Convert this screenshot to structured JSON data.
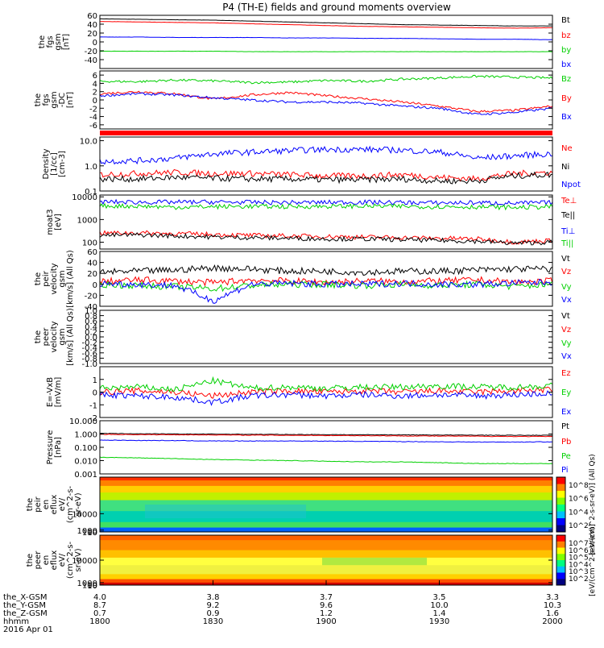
{
  "title": "P4 (TH-E) fields and ground moments overview",
  "colors": {
    "black": "#000000",
    "red": "#ff0000",
    "green": "#00d000",
    "blue": "#0000ff"
  },
  "chart_data": [
    {
      "type": "line",
      "id": "fgs",
      "ylabel_lines": [
        "the",
        "fgs",
        "gsm",
        "[nT]"
      ],
      "ylim": [
        -60,
        60
      ],
      "ticks": [
        60,
        40,
        20,
        0,
        -20,
        -40
      ],
      "series": [
        {
          "name": "Bt",
          "color": "black",
          "values": [
            52,
            51,
            50,
            49,
            47,
            45,
            43,
            41,
            39,
            38,
            37,
            36,
            36
          ]
        },
        {
          "name": "bz",
          "color": "red",
          "values": [
            46,
            45,
            44,
            43,
            41,
            39,
            37,
            35,
            34,
            33,
            32,
            31,
            32
          ]
        },
        {
          "name": "by",
          "color": "green",
          "values": [
            -21,
            -21,
            -21,
            -21,
            -22,
            -22,
            -22,
            -22,
            -22,
            -22,
            -22,
            -22,
            -22
          ]
        },
        {
          "name": "bx",
          "color": "blue",
          "values": [
            11,
            11,
            10,
            10,
            10,
            9,
            9,
            8,
            8,
            7,
            6,
            6,
            5
          ]
        }
      ]
    },
    {
      "type": "line",
      "id": "fgs_dsl",
      "ylabel_lines": [
        "the",
        "fgs",
        "gsm",
        "-DC",
        "[nT]"
      ],
      "ylim": [
        -7,
        7
      ],
      "ticks": [
        6,
        4,
        2,
        0,
        -2,
        -4,
        -6
      ],
      "series": [
        {
          "name": "Bz",
          "color": "green",
          "values": [
            4.5,
            4.4,
            4.8,
            4.6,
            4.2,
            4.3,
            4.7,
            4.5,
            5,
            5.3,
            5.7,
            5.5,
            5.3
          ]
        },
        {
          "name": "By",
          "color": "red",
          "values": [
            1.5,
            2,
            1.5,
            0.2,
            1.2,
            1.8,
            1,
            0.3,
            -0.5,
            -1.5,
            -2.8,
            -2.5,
            -1.5
          ]
        },
        {
          "name": "Bx",
          "color": "blue",
          "values": [
            1,
            1.5,
            1.2,
            0.5,
            0,
            -0.5,
            -0.5,
            -0.8,
            -1.5,
            -2,
            -3.5,
            -3,
            -2
          ]
        }
      ]
    },
    {
      "type": "line",
      "id": "density",
      "log": true,
      "ylabel_lines": [
        "Density",
        "[1/cc]",
        "[cm-3]"
      ],
      "ylim": [
        0.1,
        14
      ],
      "ticks": [
        "10.0",
        "1.0",
        "0.1"
      ],
      "series": [
        {
          "name": "Ne",
          "color": "red",
          "values": [
            0.45,
            0.5,
            0.55,
            0.5,
            0.5,
            0.45,
            0.4,
            0.4,
            0.45,
            0.35,
            0.3,
            0.5,
            0.55
          ]
        },
        {
          "name": "Ni",
          "color": "black",
          "values": [
            0.3,
            0.3,
            0.35,
            0.32,
            0.3,
            0.3,
            0.28,
            0.28,
            0.3,
            0.25,
            0.25,
            0.4,
            0.45
          ]
        },
        {
          "name": "Npot",
          "color": "blue",
          "values": [
            1.5,
            1.6,
            2,
            3,
            3.5,
            4,
            4.5,
            4.5,
            4.2,
            3.5,
            2,
            2.5,
            3
          ]
        }
      ]
    },
    {
      "type": "line",
      "id": "moat",
      "log": true,
      "ylabel_lines": [
        "moat3",
        "[eV]"
      ],
      "ylim": [
        50,
        12000
      ],
      "ticks": [
        "10000",
        "1000",
        "100"
      ],
      "series": [
        {
          "name": "Te⊥",
          "color": "red",
          "values": [
            250,
            260,
            240,
            220,
            200,
            190,
            180,
            170,
            160,
            150,
            140,
            100,
            120
          ]
        },
        {
          "name": "Te||",
          "color": "black",
          "values": [
            200,
            210,
            190,
            170,
            160,
            150,
            140,
            140,
            130,
            120,
            110,
            90,
            100
          ]
        },
        {
          "name": "Ti⊥",
          "color": "blue",
          "values": [
            6000,
            5800,
            5800,
            5900,
            5700,
            5600,
            5700,
            5800,
            5600,
            5400,
            5500,
            5200,
            5600
          ]
        },
        {
          "name": "Ti||",
          "color": "green",
          "values": [
            4000,
            3900,
            3500,
            3700,
            3800,
            3700,
            3800,
            3900,
            3800,
            3700,
            3600,
            3400,
            3700
          ]
        }
      ]
    },
    {
      "type": "line",
      "id": "peir_vel",
      "ylabel_lines": [
        "the",
        "peir",
        "velocity",
        "gsm",
        "[km/s] (All Qs)"
      ],
      "ylim": [
        -40,
        60
      ],
      "ticks": [
        60,
        40,
        20,
        0,
        -20,
        -40
      ],
      "series": [
        {
          "name": "Vt",
          "color": "black",
          "values": [
            22,
            24,
            26,
            30,
            28,
            24,
            24,
            22,
            24,
            24,
            26,
            28,
            28
          ]
        },
        {
          "name": "Vz",
          "color": "red",
          "values": [
            5,
            8,
            6,
            3,
            8,
            6,
            4,
            6,
            5,
            6,
            8,
            4,
            6
          ]
        },
        {
          "name": "Vy",
          "color": "green",
          "values": [
            0,
            -2,
            -4,
            -8,
            -2,
            0,
            0,
            -2,
            0,
            -2,
            0,
            -4,
            0
          ]
        },
        {
          "name": "Vx",
          "color": "blue",
          "values": [
            2,
            0,
            -2,
            -30,
            0,
            2,
            0,
            0,
            2,
            0,
            0,
            2,
            4
          ]
        }
      ]
    },
    {
      "type": "line",
      "id": "peer_vel",
      "ylabel_lines": [
        "the",
        "peer",
        "velocity",
        "gsm",
        "[km/s] (All Qs)"
      ],
      "ylim": [
        -1,
        1
      ],
      "ticks": [
        "1.0",
        "0.8",
        "0.6",
        "0.4",
        "0.2",
        "0.0",
        "-0.2",
        "-0.4",
        "-0.6",
        "-0.8",
        "-1.0"
      ],
      "series": [
        {
          "name": "Vt",
          "color": "black",
          "values": []
        },
        {
          "name": "Vz",
          "color": "red",
          "values": []
        },
        {
          "name": "Vy",
          "color": "green",
          "values": []
        },
        {
          "name": "Vx",
          "color": "blue",
          "values": []
        }
      ]
    },
    {
      "type": "line",
      "id": "efield",
      "ylabel_lines": [
        "E=-VxB",
        "[mV/m]"
      ],
      "ylim": [
        -2,
        2
      ],
      "ticks": [
        1,
        0,
        -1,
        -2
      ],
      "series": [
        {
          "name": "Ez",
          "color": "red",
          "values": [
            0,
            0.1,
            0,
            -0.3,
            0,
            0.1,
            0,
            0.1,
            0,
            0.1,
            0,
            0.1,
            0.2
          ]
        },
        {
          "name": "Ey",
          "color": "green",
          "values": [
            0.3,
            0.4,
            0.2,
            0.9,
            0.3,
            0.4,
            0.3,
            0.4,
            0.4,
            0.5,
            0.4,
            0.4,
            0.5
          ]
        },
        {
          "name": "Ex",
          "color": "blue",
          "values": [
            -0.2,
            -0.3,
            -0.4,
            -0.8,
            -0.3,
            -0.2,
            -0.3,
            -0.2,
            -0.3,
            -0.2,
            -0.3,
            -0.2,
            -0.1
          ]
        }
      ]
    },
    {
      "type": "line",
      "id": "pressure",
      "log": true,
      "ylabel_lines": [
        "Pressure",
        "[nPa]"
      ],
      "ylim": [
        0.001,
        10
      ],
      "ticks": [
        "10.000",
        "1.000",
        "0.100",
        "0.010",
        "0.001"
      ],
      "series": [
        {
          "name": "Pt",
          "color": "black",
          "values": [
            1.1,
            1.05,
            1.0,
            0.98,
            0.95,
            0.92,
            0.9,
            0.88,
            0.86,
            0.84,
            0.82,
            0.8,
            0.8
          ]
        },
        {
          "name": "Pb",
          "color": "red",
          "values": [
            0.95,
            0.9,
            0.88,
            0.85,
            0.82,
            0.8,
            0.78,
            0.75,
            0.72,
            0.7,
            0.68,
            0.65,
            0.65
          ]
        },
        {
          "name": "Pe",
          "color": "green",
          "values": [
            0.018,
            0.016,
            0.014,
            0.012,
            0.011,
            0.01,
            0.009,
            0.008,
            0.008,
            0.007,
            0.006,
            0.006,
            0.006
          ]
        },
        {
          "name": "Pi",
          "color": "blue",
          "values": [
            0.35,
            0.33,
            0.32,
            0.3,
            0.3,
            0.3,
            0.29,
            0.28,
            0.27,
            0.26,
            0.25,
            0.25,
            0.26
          ]
        }
      ]
    },
    {
      "type": "heatmap",
      "id": "peir_en",
      "ylabel_lines": [
        "the",
        "peir",
        "en",
        "eflux",
        "eV/",
        "(cm^2-s-",
        "sr-eV)"
      ],
      "ylim": [
        10,
        30000
      ],
      "ticks": [
        "10000",
        "1000",
        "100",
        "10"
      ],
      "colorbar": {
        "label": "[eV/(cm^2-s-sr-eV)] (All Qs)",
        "ticks": [
          "10^8",
          "10^6",
          "10^4",
          "10^2"
        ]
      }
    },
    {
      "type": "heatmap",
      "id": "peer_en",
      "ylabel_lines": [
        "the",
        "peer",
        "en",
        "eflux",
        "eV/",
        "(cm^2-s-",
        "sr-eV)"
      ],
      "ylim": [
        5,
        20000
      ],
      "ticks": [
        "10000",
        "1000",
        "100",
        "10"
      ],
      "colorbar": {
        "label": "[eV/(cm^2-s-sr-eV)]",
        "ticks": [
          "10^7",
          "10^6",
          "10^5",
          "10^4",
          "10^3",
          "10^2"
        ]
      }
    }
  ],
  "x_axis": {
    "row_labels": [
      "the_X-GSM",
      "the_Y-GSM",
      "the_Z-GSM",
      "hhmm",
      "2016 Apr 01"
    ],
    "columns": [
      [
        "4.0",
        "8.7",
        "0.7",
        "1800"
      ],
      [
        "3.8",
        "9.2",
        "0.9",
        "1830"
      ],
      [
        "3.7",
        "9.6",
        "1.2",
        "1900"
      ],
      [
        "3.5",
        "10.0",
        "1.4",
        "1930"
      ],
      [
        "3.3",
        "10.3",
        "1.6",
        "2000"
      ]
    ]
  }
}
